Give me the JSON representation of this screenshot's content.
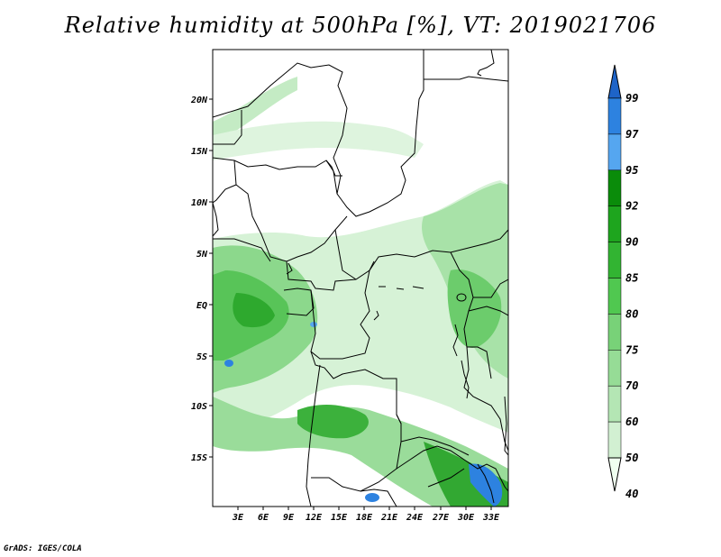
{
  "title": "Relative humidity at 500hPa [%], VT: 2019021706",
  "credit": "GrADS: IGES/COLA",
  "map": {
    "lat_ticks": [
      "20N",
      "15N",
      "10N",
      "5N",
      "EQ",
      "5S",
      "10S",
      "15S"
    ],
    "lon_ticks": [
      "3E",
      "6E",
      "9E",
      "12E",
      "15E",
      "18E",
      "21E",
      "24E",
      "27E",
      "30E",
      "33E"
    ]
  },
  "colorbar": {
    "labels": [
      "99",
      "97",
      "95",
      "92",
      "90",
      "85",
      "80",
      "75",
      "70",
      "60",
      "50",
      "40"
    ],
    "colors": [
      "#1e64c8",
      "#2d82e0",
      "#55a6f0",
      "#0a8c0a",
      "#1ea51e",
      "#32b432",
      "#50c850",
      "#78d278",
      "#96dc96",
      "#b4e6b4",
      "#d2f0d2",
      "#f0fff0"
    ]
  },
  "colors": {
    "border": "#000000",
    "humid_low": "#d2f0d2",
    "humid_mid": "#78d278",
    "humid_high": "#1ea51e",
    "saturated": "#2d82e0"
  }
}
